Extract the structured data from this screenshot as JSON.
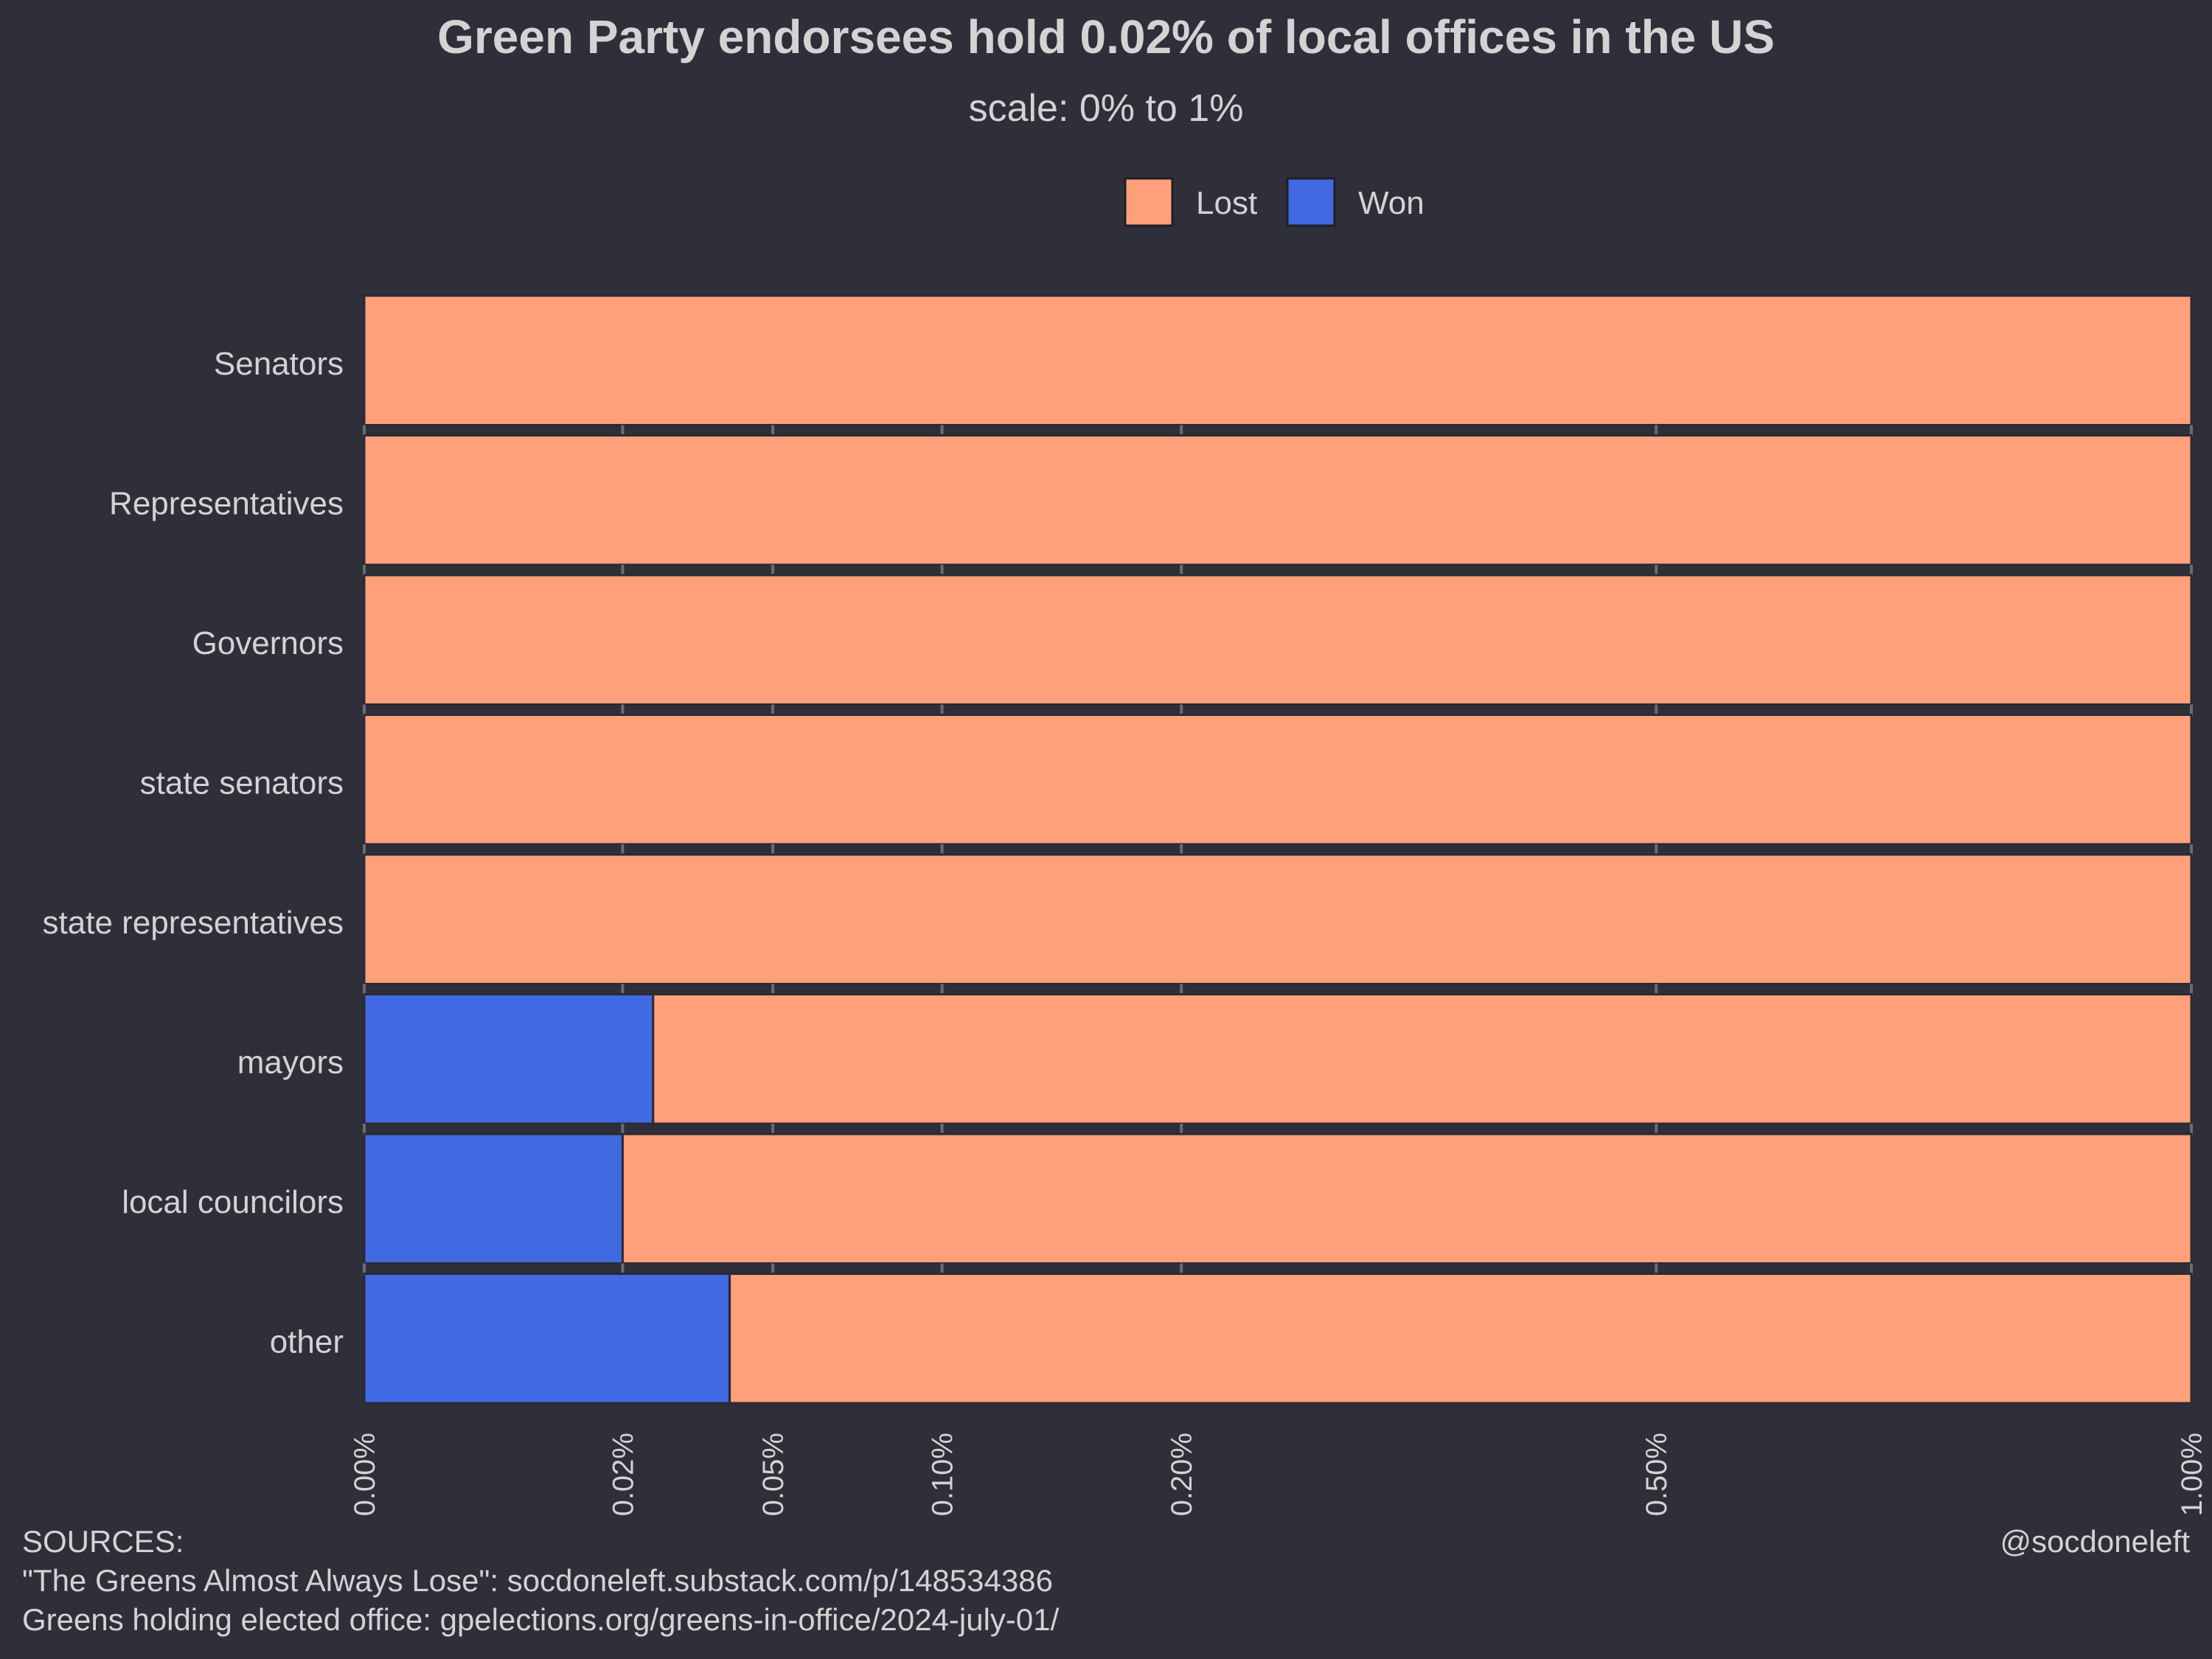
{
  "chart_data": {
    "type": "bar",
    "stacked": true,
    "orientation": "horizontal",
    "title": "Green Party endorsees hold 0.02% of local offices in the US",
    "subtitle": "scale: 0% to 1%",
    "xlim": [
      0,
      1
    ],
    "x_scale": "sqrt",
    "x_ticks": [
      0,
      0.02,
      0.05,
      0.1,
      0.2,
      0.5,
      1.0
    ],
    "x_tick_labels": [
      "0.00%",
      "0.02%",
      "0.05%",
      "0.10%",
      "0.20%",
      "0.50%",
      "1.00%"
    ],
    "categories": [
      "Senators",
      "Representatives",
      "Governors",
      "state senators",
      "state representatives",
      "mayors",
      "local councilors",
      "other"
    ],
    "series": [
      {
        "name": "Won",
        "color": "#4169e1",
        "values": [
          0,
          0,
          0,
          0,
          0,
          0.025,
          0.02,
          0.04
        ]
      },
      {
        "name": "Lost",
        "color": "#ffa07a",
        "values": [
          1,
          1,
          1,
          1,
          1,
          0.975,
          0.98,
          0.96
        ]
      }
    ],
    "legend": {
      "position": "top",
      "order": [
        "Lost",
        "Won"
      ]
    },
    "grid": false
  },
  "footer": {
    "sources_heading": "SOURCES:",
    "source_1": "\"The Greens Almost Always Lose\": socdoneleft.substack.com/p/148534386",
    "source_2": "Greens holding elected office: gpelections.org/greens-in-office/2024-july-01/",
    "credit": "@socdoneleft"
  },
  "colors": {
    "background": "#2f2f3a",
    "text": "#d3d3d3",
    "divider": "#2a2a33",
    "tick": "#6b6b78"
  }
}
